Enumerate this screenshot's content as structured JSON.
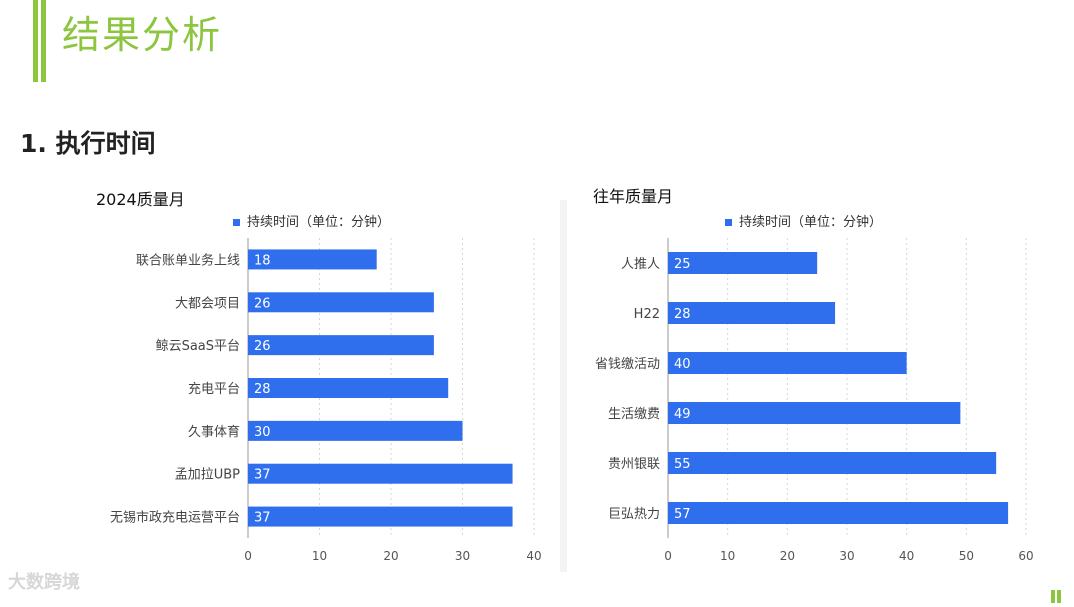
{
  "page": {
    "title": "结果分析",
    "section": "1.  执行时间",
    "watermark": "大数跨境"
  },
  "colors": {
    "accent": "#8cc63f",
    "bar": "#2f6fed",
    "grid": "#d6d6d6"
  },
  "chart_data": [
    {
      "type": "bar",
      "orientation": "horizontal",
      "title": "2024质量月",
      "legend": "持续时间（单位：分钟）",
      "legend_position": "top",
      "categories": [
        "联合账单业务上线",
        "大都会项目",
        "鲸云SaaS平台",
        "充电平台",
        "久事体育",
        "孟加拉UBP",
        "无锡市政充电运营平台"
      ],
      "values": [
        18,
        26,
        26,
        28,
        30,
        37,
        37
      ],
      "xlim": [
        0,
        40
      ],
      "xticks": [
        "0",
        "10",
        "20",
        "30",
        "40"
      ],
      "grid": true
    },
    {
      "type": "bar",
      "orientation": "horizontal",
      "title": "往年质量月",
      "legend": "持续时间（单位：分钟）",
      "legend_position": "top",
      "categories": [
        "人推人",
        "H22",
        "省钱缴活动",
        "生活缴费",
        "贵州银联",
        "巨弘热力"
      ],
      "values": [
        25,
        28,
        40,
        49,
        55,
        57
      ],
      "xlim": [
        0,
        60
      ],
      "xticks": [
        "0",
        "10",
        "20",
        "30",
        "40",
        "50",
        "60"
      ],
      "grid": true
    }
  ]
}
